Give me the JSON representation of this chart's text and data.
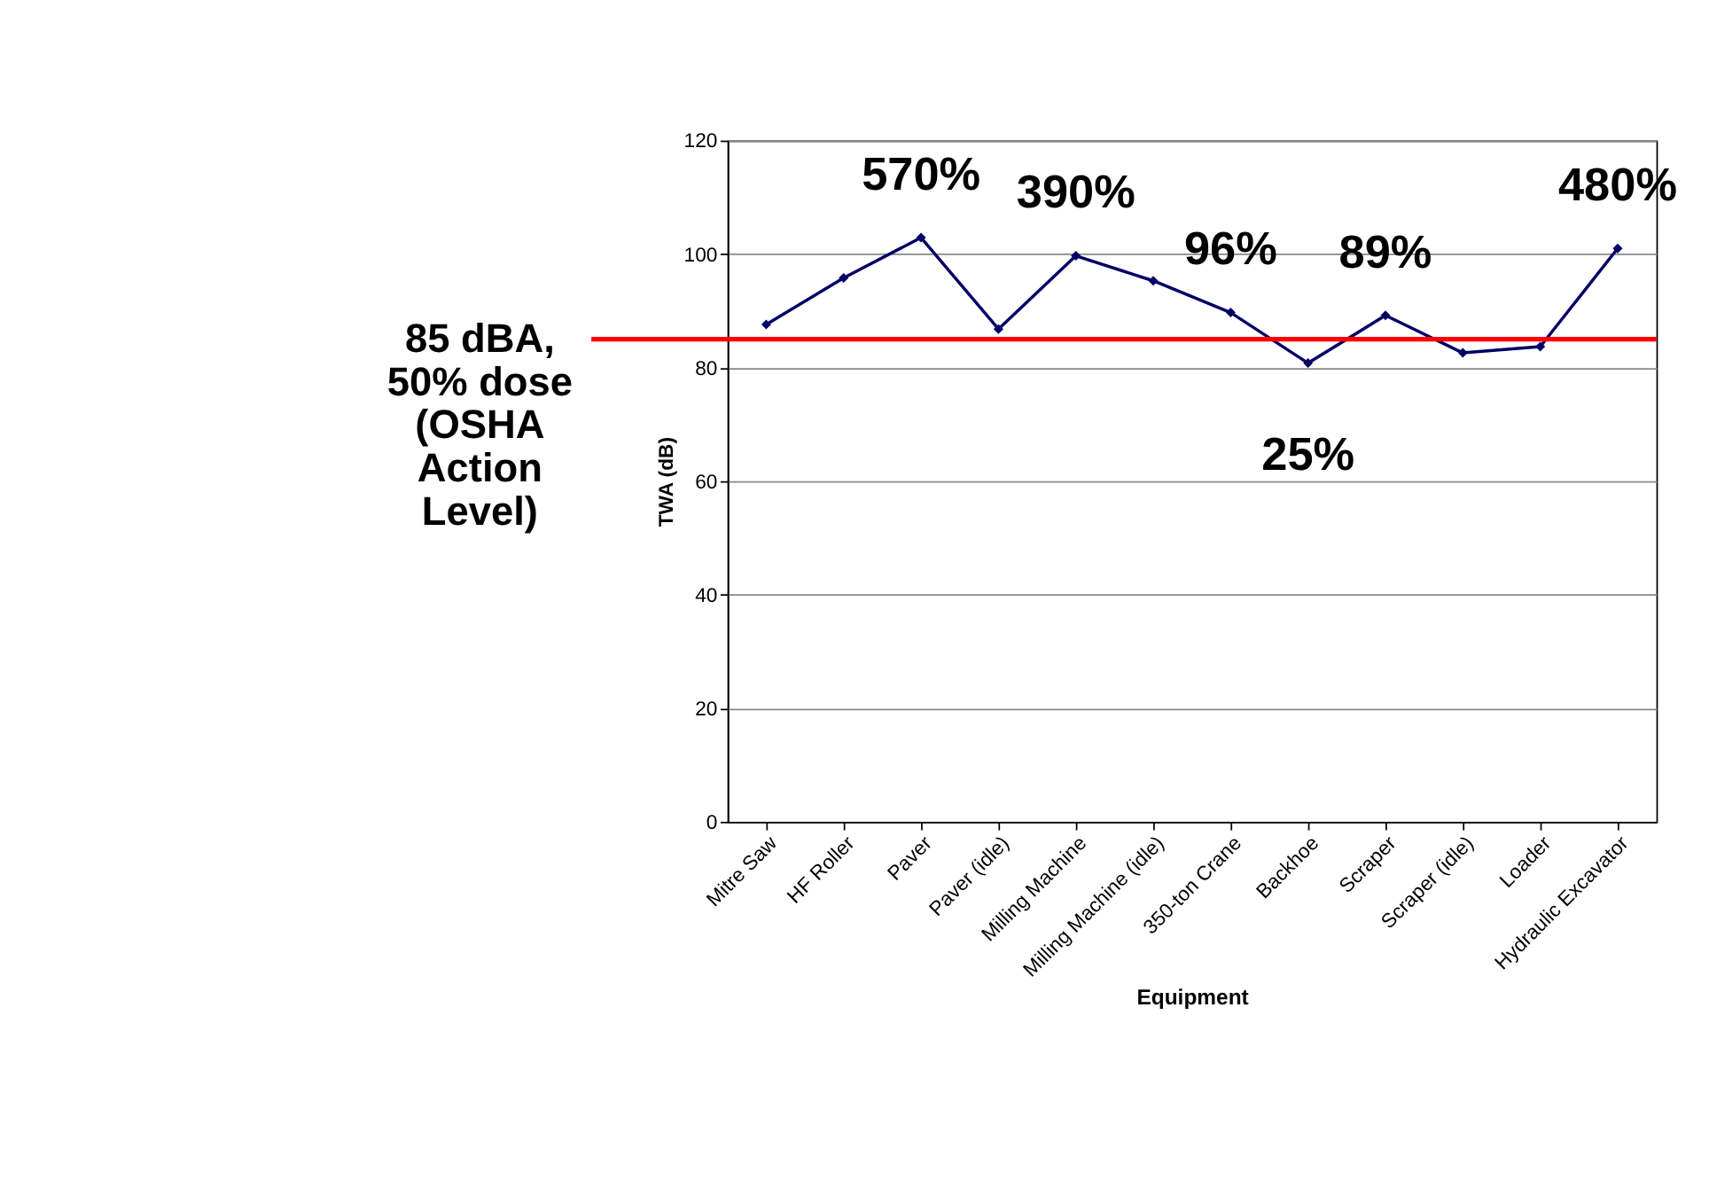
{
  "chart_data": {
    "type": "line",
    "xlabel": "Equipment",
    "ylabel": "TWA (dB)",
    "categories": [
      "Mitre Saw",
      "HF Roller",
      "Paver",
      "Paver (idle)",
      "Milling Machine",
      "Milling Machine (idle)",
      "350-ton Crane",
      "Backhoe",
      "Scraper",
      "Scraper (idle)",
      "Loader",
      "Hydraulic Excavator"
    ],
    "series": [
      {
        "color": "#000066",
        "values": [
          87.6,
          95.8,
          102.9,
          86.8,
          99.7,
          95.3,
          89.7,
          80.8,
          89.2,
          82.6,
          83.7,
          101
        ]
      }
    ],
    "ylim": [
      0,
      120
    ],
    "yticks": [
      0,
      20,
      40,
      60,
      80,
      100,
      120
    ],
    "grid": "y",
    "marker": "diamond",
    "line_style": "solid",
    "ref_lines": [
      {
        "axis": "y",
        "value": 85,
        "label": "85 dBA,\n50% dose\n(OSHA\nAction\nLevel)",
        "color": "#ff0000"
      }
    ],
    "annotations": [
      {
        "text": "570%",
        "x": "Paver",
        "y": 102.9
      },
      {
        "text": "390%",
        "x": "Milling Machine",
        "y": 99.7
      },
      {
        "text": "96%",
        "x": "350-ton Crane",
        "y": 89.7
      },
      {
        "text": "25%",
        "x": "Backhoe",
        "y": 80.8
      },
      {
        "text": "89%",
        "x": "Scraper",
        "y": 89.2
      },
      {
        "text": "480%",
        "x": "Hydraulic Excavator",
        "y": 101
      }
    ]
  }
}
